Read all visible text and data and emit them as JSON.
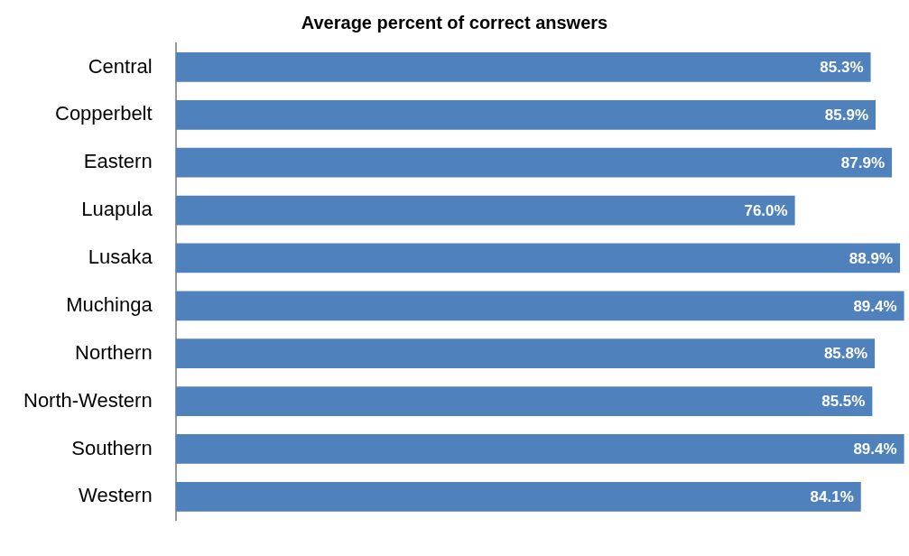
{
  "chart_data": {
    "type": "bar",
    "orientation": "horizontal",
    "title": "Average percent of correct answers",
    "categories": [
      "Central",
      "Copperbelt",
      "Eastern",
      "Luapula",
      "Lusaka",
      "Muchinga",
      "Northern",
      "North-Western",
      "Southern",
      "Western"
    ],
    "values": [
      85.3,
      85.9,
      87.9,
      76.0,
      88.9,
      89.4,
      85.8,
      85.5,
      89.4,
      84.1
    ],
    "value_labels": [
      "85.3%",
      "85.9%",
      "87.9%",
      "76.0%",
      "88.9%",
      "89.4%",
      "85.8%",
      "85.5%",
      "89.4%",
      "84.1%"
    ],
    "color": "#4f81bd"
  }
}
